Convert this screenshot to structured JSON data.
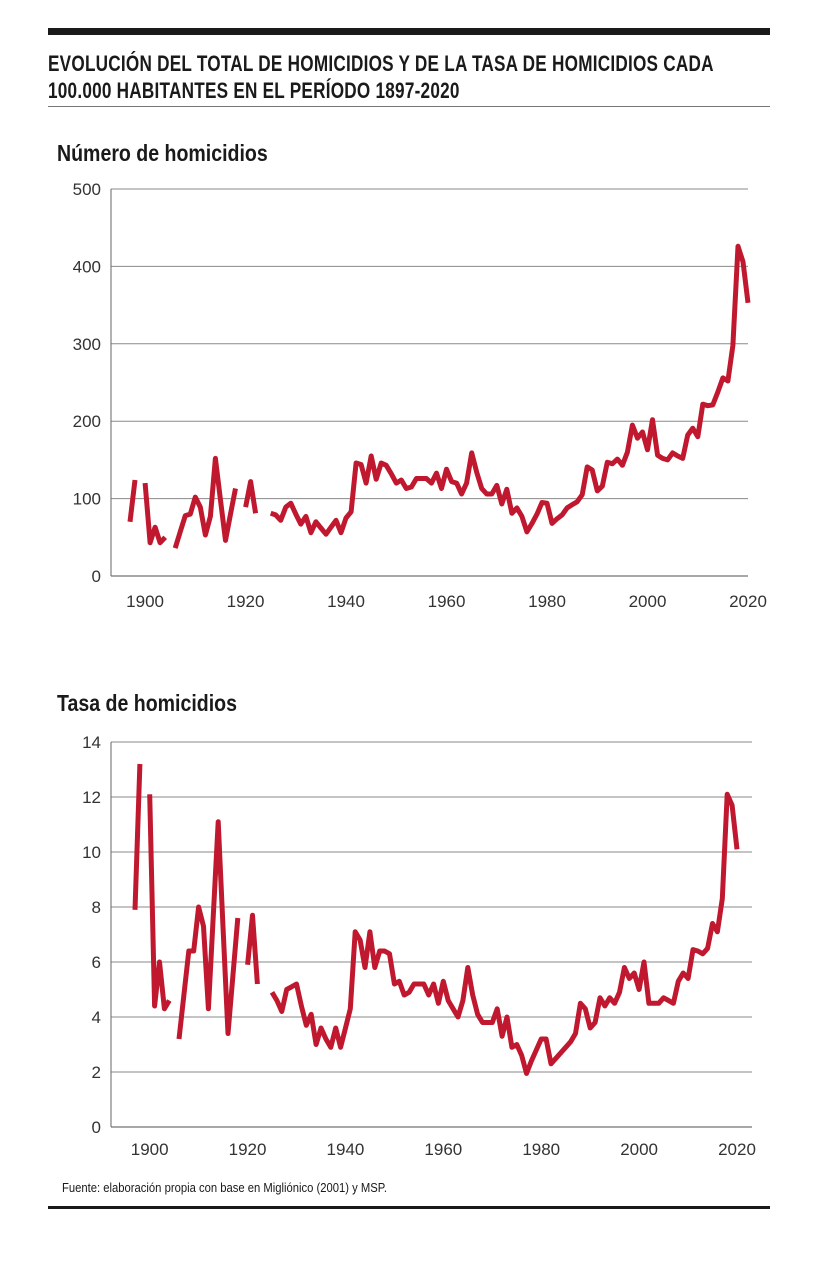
{
  "title_lines": [
    "EVOLUCIÓN DEL TOTAL DE HOMICIDIOS Y DE LA TASA DE HOMICIDIOS CADA",
    "100.000 HABITANTES EN EL PERÍODO 1897-2020"
  ],
  "source": "Fuente: elaboración propia con base en Migliónico (2001) y MSP.",
  "colors": {
    "line": "#c0182f",
    "grid": "#8a8a8a",
    "rule": "#1a1a1a"
  },
  "chart_data": [
    {
      "type": "line",
      "title": "Número de homicidios",
      "xlim": [
        1897,
        2020
      ],
      "ylim": [
        0,
        500
      ],
      "xticks": [
        1900,
        1920,
        1940,
        1960,
        1980,
        2000,
        2020
      ],
      "yticks": [
        0,
        100,
        200,
        300,
        400,
        500
      ],
      "grid": "horizontal",
      "x_start": 1897,
      "values": [
        70,
        124,
        null,
        120,
        43,
        63,
        43,
        50,
        null,
        36,
        57,
        78,
        80,
        102,
        89,
        53,
        77,
        152,
        99,
        46,
        80,
        113,
        null,
        89,
        122,
        81,
        null,
        null,
        81,
        79,
        72,
        89,
        94,
        80,
        67,
        77,
        56,
        70,
        62,
        54,
        63,
        72,
        56,
        75,
        83,
        146,
        144,
        120,
        155,
        125,
        146,
        143,
        132,
        120,
        124,
        113,
        115,
        126,
        126,
        126,
        120,
        133,
        113,
        138,
        122,
        120,
        106,
        120,
        159,
        134,
        113,
        106,
        106,
        117,
        93,
        112,
        81,
        88,
        77,
        57,
        68,
        80,
        95,
        94,
        68,
        74,
        79,
        88,
        92,
        96,
        105,
        141,
        137,
        110,
        116,
        147,
        145,
        151,
        143,
        160,
        195,
        178,
        186,
        163,
        202,
        156,
        152,
        150,
        159,
        155,
        152,
        182,
        191,
        180,
        222,
        220,
        221,
        238,
        256,
        252,
        298,
        426,
        406,
        353
      ]
    },
    {
      "type": "line",
      "title": "Tasa de homicidios",
      "xlim": [
        1897,
        2020
      ],
      "ylim": [
        0,
        14
      ],
      "xticks": [
        1900,
        1920,
        1940,
        1960,
        1980,
        2000,
        2020
      ],
      "yticks": [
        0,
        2,
        4,
        6,
        8,
        10,
        12,
        14
      ],
      "grid": "horizontal",
      "x_start": 1897,
      "values": [
        7.9,
        13.2,
        null,
        12.1,
        4.4,
        6.0,
        4.3,
        4.6,
        null,
        3.2,
        4.8,
        6.4,
        6.4,
        8.0,
        7.3,
        4.3,
        7.7,
        11.1,
        7.2,
        3.4,
        5.5,
        7.6,
        null,
        5.9,
        7.7,
        5.2,
        null,
        null,
        4.9,
        4.6,
        4.2,
        5.0,
        5.1,
        5.2,
        4.4,
        3.7,
        4.1,
        3.0,
        3.6,
        3.2,
        2.9,
        3.6,
        2.9,
        3.6,
        4.3,
        7.1,
        6.8,
        5.8,
        7.1,
        5.8,
        6.4,
        6.4,
        6.3,
        5.2,
        5.3,
        4.8,
        4.9,
        5.2,
        5.2,
        5.2,
        4.8,
        5.2,
        4.5,
        5.3,
        4.6,
        4.3,
        4.0,
        4.6,
        5.8,
        4.8,
        4.1,
        3.8,
        3.8,
        3.8,
        4.3,
        3.3,
        4.0,
        2.9,
        3.0,
        2.6,
        1.95,
        2.4,
        2.8,
        3.2,
        3.2,
        2.3,
        2.5,
        2.7,
        2.9,
        3.1,
        3.4,
        4.5,
        4.3,
        3.6,
        3.8,
        4.7,
        4.4,
        4.7,
        4.5,
        4.9,
        5.8,
        5.4,
        5.6,
        5.0,
        6.0,
        4.5,
        4.5,
        4.5,
        4.7,
        4.6,
        4.5,
        5.3,
        5.6,
        5.4,
        6.45,
        6.4,
        6.3,
        6.5,
        7.4,
        7.1,
        8.3,
        12.1,
        11.7,
        10.1
      ]
    }
  ]
}
